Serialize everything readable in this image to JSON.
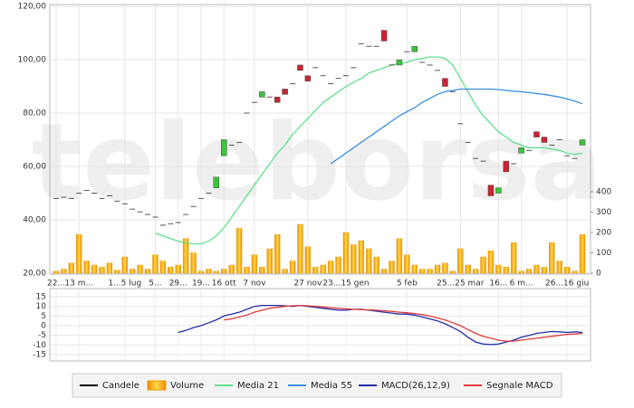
{
  "chart_data": [
    {
      "type": "candlestick",
      "watermark": "teleborsa",
      "categories": [
        "22...",
        null,
        null,
        "13 m...",
        null,
        null,
        null,
        null,
        null,
        "1...5 lug",
        null,
        null,
        null,
        "5...",
        null,
        null,
        "29...",
        null,
        null,
        "19...",
        null,
        null,
        "16 ott",
        null,
        null,
        null,
        "7 nov",
        null,
        null,
        null,
        null,
        null,
        null,
        "27 nov",
        null,
        null,
        null,
        null,
        "23...15 gen",
        null,
        null,
        null,
        null,
        null,
        null,
        null,
        "5 feb",
        null,
        null,
        null,
        null,
        null,
        null,
        "25...25 mar",
        null,
        null,
        null,
        null,
        "16...",
        null,
        null,
        "6 m...",
        null,
        null,
        null,
        null,
        null,
        "26...16 giu",
        null,
        null
      ],
      "ylim": [
        20,
        120
      ],
      "yticks": [
        {
          "value": 20,
          "label": "20,00"
        },
        {
          "value": 40,
          "label": "40,00"
        },
        {
          "value": 60,
          "label": "60,00"
        },
        {
          "value": 80,
          "label": "80,00"
        },
        {
          "value": 100,
          "label": "100,00"
        },
        {
          "value": 120,
          "label": "120,00"
        }
      ],
      "y2lim": [
        0,
        400
      ],
      "y2ticks": [
        0,
        100,
        200,
        300,
        400
      ],
      "grid": true,
      "series": [
        {
          "name": "Candele",
          "type": "candlestick",
          "color": "#000000",
          "up_color": "#3cc43c",
          "down_color": "#cc2233",
          "flat_color": "#555555",
          "open": [
            48,
            48.5,
            48,
            50,
            51,
            50,
            48,
            49,
            47,
            46,
            44,
            43,
            42,
            41,
            38,
            38.5,
            39,
            42,
            45,
            48,
            50,
            52,
            64,
            68,
            69,
            80,
            84,
            86,
            86,
            86,
            89,
            91,
            98,
            94,
            97,
            94,
            91,
            93,
            94,
            97,
            106,
            105,
            105,
            111,
            98,
            98,
            103,
            103,
            99,
            98,
            96,
            93,
            88,
            76,
            69,
            63,
            62,
            53,
            50,
            62,
            61,
            65,
            66,
            73,
            71,
            68,
            70,
            64,
            63,
            68
          ],
          "close": [
            48,
            48.5,
            48,
            50,
            51,
            50,
            48,
            49,
            47,
            46,
            44,
            43,
            42,
            41,
            38,
            38.5,
            39,
            42,
            45,
            48,
            50,
            56,
            70,
            68,
            69,
            80,
            84,
            88,
            86,
            84,
            87,
            91,
            96,
            92,
            97,
            94,
            91,
            93,
            94,
            97,
            106,
            105,
            105,
            107,
            98,
            100,
            103,
            105,
            99,
            98,
            96,
            90,
            88,
            76,
            69,
            63,
            62,
            49,
            52,
            58,
            61,
            67,
            66,
            71,
            69,
            68,
            70,
            64,
            63,
            70
          ]
        },
        {
          "name": "Volume",
          "type": "bar",
          "axis": "y2",
          "color": "#f5a800",
          "values": [
            10,
            20,
            50,
            190,
            60,
            40,
            30,
            50,
            15,
            80,
            20,
            40,
            20,
            90,
            60,
            30,
            40,
            170,
            100,
            10,
            20,
            10,
            20,
            40,
            220,
            30,
            90,
            30,
            120,
            190,
            20,
            60,
            240,
            130,
            30,
            40,
            60,
            80,
            200,
            140,
            160,
            120,
            80,
            20,
            60,
            170,
            90,
            40,
            20,
            20,
            40,
            50,
            10,
            120,
            40,
            20,
            80,
            110,
            40,
            30,
            150,
            10,
            20,
            40,
            30,
            150,
            60,
            30,
            10,
            190
          ]
        },
        {
          "name": "Media 21",
          "type": "line",
          "color": "#5fe08e",
          "values": [
            null,
            null,
            null,
            null,
            null,
            null,
            null,
            null,
            null,
            null,
            null,
            null,
            null,
            35,
            34,
            33,
            32,
            31.5,
            31,
            31,
            32,
            34,
            37,
            41,
            45,
            49,
            53,
            57,
            61,
            65,
            68,
            72,
            75,
            78,
            81,
            84,
            86,
            88,
            90,
            91.5,
            93,
            95,
            96,
            97,
            98,
            98.5,
            99,
            100,
            100.5,
            101,
            101,
            100.5,
            98,
            93,
            88,
            83,
            79,
            76,
            73,
            71,
            69,
            68,
            67,
            67,
            67,
            66.5,
            66,
            65,
            64.5,
            65
          ]
        },
        {
          "name": "Media 55",
          "type": "line",
          "color": "#3a8ee0",
          "values": [
            null,
            null,
            null,
            null,
            null,
            null,
            null,
            null,
            null,
            null,
            null,
            null,
            null,
            null,
            null,
            null,
            null,
            null,
            null,
            null,
            null,
            null,
            null,
            null,
            null,
            null,
            null,
            null,
            null,
            null,
            null,
            null,
            null,
            null,
            null,
            null,
            61,
            63,
            65,
            67,
            69,
            71,
            73,
            75,
            77,
            79,
            80.5,
            82,
            84,
            85.5,
            87,
            88,
            88.5,
            89,
            89,
            89,
            89,
            89,
            88.8,
            88.5,
            88.2,
            88,
            87.7,
            87.3,
            87,
            86.5,
            86,
            85.3,
            84.5,
            83.5
          ]
        }
      ]
    },
    {
      "type": "line",
      "ylim": [
        -15,
        15
      ],
      "yticks": [
        15,
        10,
        5,
        0,
        -5,
        -10,
        -15
      ],
      "series": [
        {
          "name": "MACD(26,12,9)",
          "type": "line",
          "color": "#1f2fa8",
          "values": [
            null,
            null,
            null,
            null,
            null,
            null,
            null,
            null,
            null,
            null,
            null,
            null,
            null,
            null,
            null,
            null,
            -3.5,
            -2.5,
            -1,
            0,
            1.5,
            3,
            5,
            6,
            7,
            8.5,
            10,
            10.5,
            10.5,
            10.5,
            10.3,
            10,
            10.5,
            10,
            9.5,
            9,
            8.5,
            8,
            8,
            8.5,
            8.5,
            8,
            7.5,
            7,
            6.5,
            6,
            6,
            5.5,
            4.5,
            3.5,
            2.5,
            1,
            -1,
            -3,
            -6,
            -8.5,
            -9.5,
            -9.8,
            -9.5,
            -8.5,
            -7.5,
            -6,
            -5,
            -4,
            -3.5,
            -3,
            -3.2,
            -3.5,
            -3.2,
            -3.5
          ]
        },
        {
          "name": "Segnale MACD",
          "type": "line",
          "color": "#e03a3a",
          "values": [
            null,
            null,
            null,
            null,
            null,
            null,
            null,
            null,
            null,
            null,
            null,
            null,
            null,
            null,
            null,
            null,
            null,
            null,
            null,
            null,
            null,
            null,
            3,
            3.5,
            4.5,
            5.5,
            7,
            8,
            9,
            9.5,
            10,
            10.3,
            10.5,
            10.3,
            10,
            9.7,
            9.3,
            9,
            8.7,
            8.5,
            8.3,
            8.2,
            8,
            7.7,
            7.4,
            7,
            6.7,
            6.3,
            5.7,
            5,
            4,
            3,
            1.5,
            0,
            -2,
            -4,
            -5.5,
            -6.5,
            -7.5,
            -8,
            -8,
            -7.5,
            -7,
            -6.5,
            -6,
            -5.5,
            -5,
            -4.5,
            -4.3,
            -4
          ]
        }
      ]
    }
  ]
}
